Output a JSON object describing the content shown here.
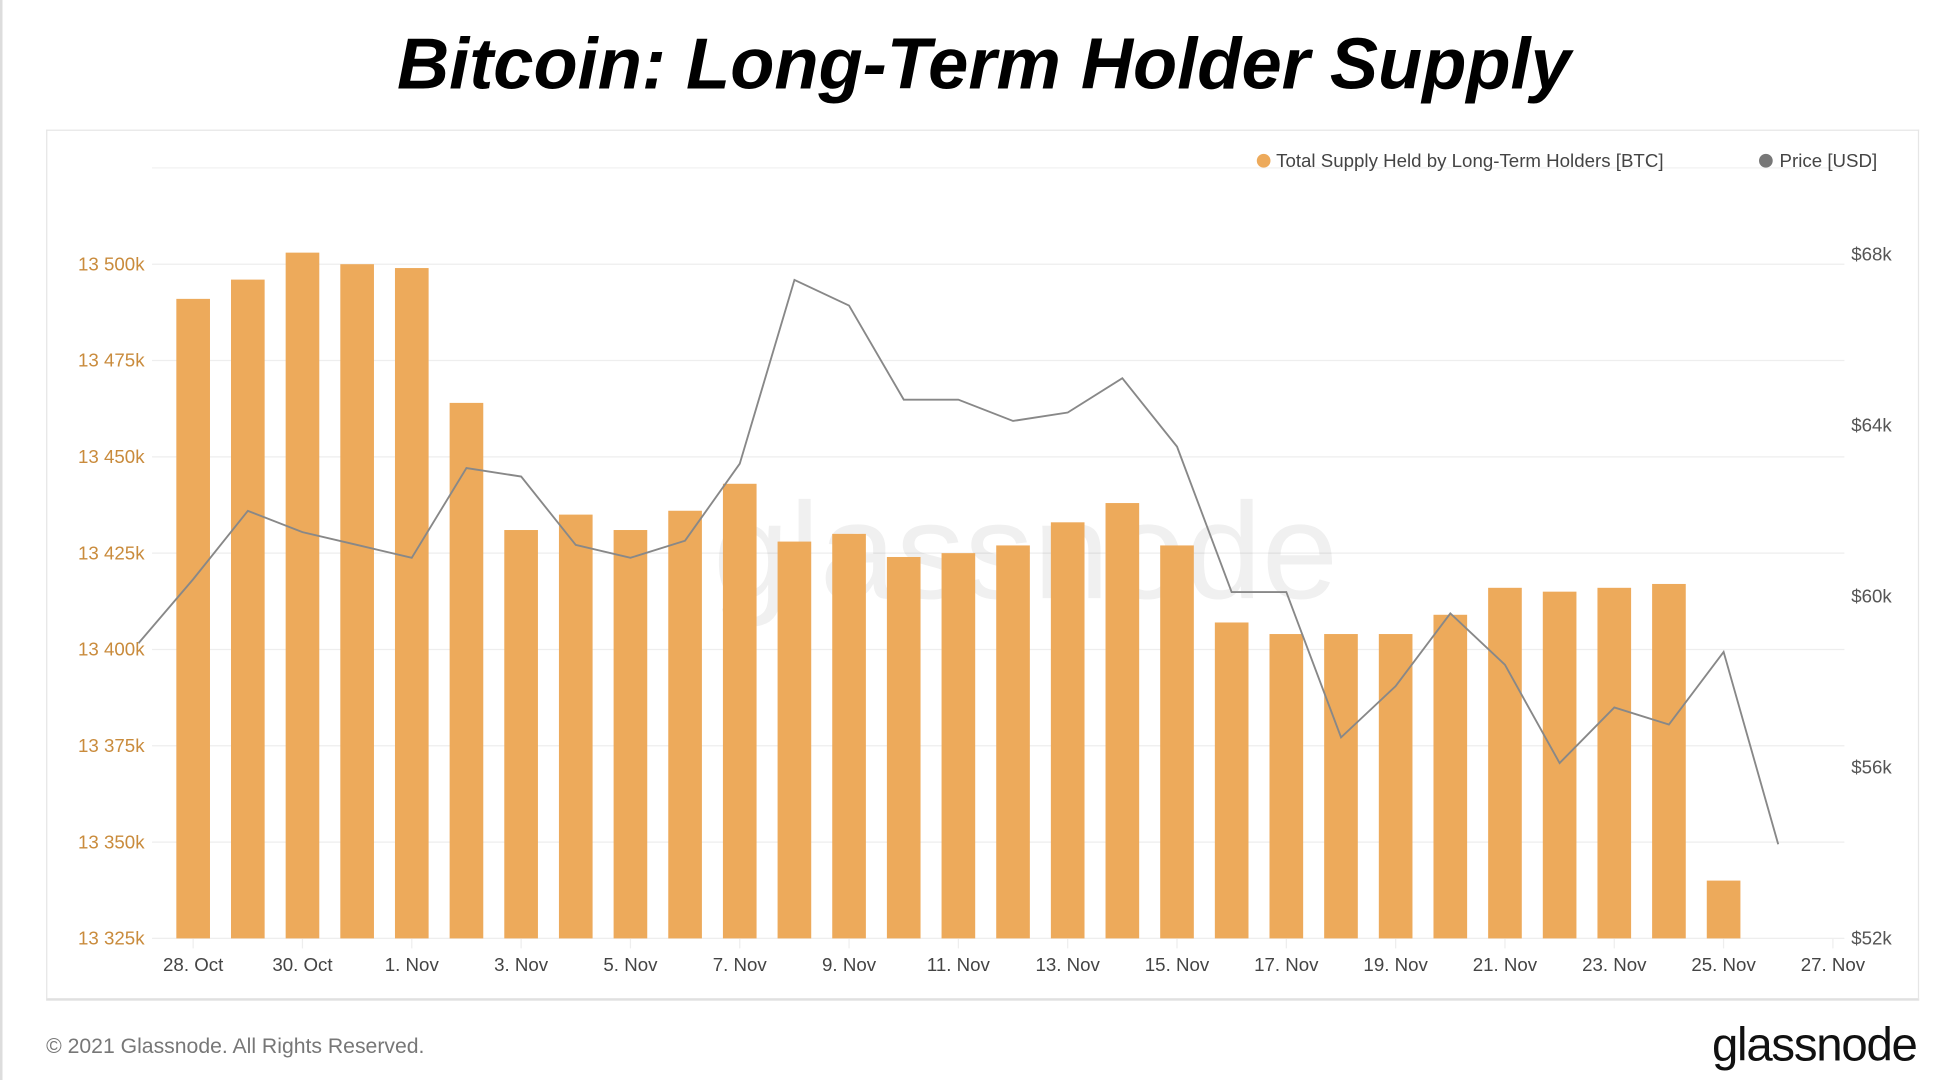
{
  "title": "Bitcoin: Long-Term Holder Supply",
  "footer": {
    "copyright": "© 2021 Glassnode. All Rights Reserved.",
    "logo": "glassnode"
  },
  "watermark": "glassnode",
  "colors": {
    "bars": "#EDAA5B",
    "price": "#777777",
    "left_axis": "#C98B3C",
    "right_axis": "#555555"
  },
  "chart_data": {
    "type": "bar+line",
    "legend_position": "top-right",
    "grid": true,
    "x_ticks": [
      "28. Oct",
      "30. Oct",
      "1. Nov",
      "3. Nov",
      "5. Nov",
      "7. Nov",
      "9. Nov",
      "11. Nov",
      "13. Nov",
      "15. Nov",
      "17. Nov",
      "19. Nov",
      "21. Nov",
      "23. Nov",
      "25. Nov",
      "27. Nov"
    ],
    "left_axis": {
      "ticks": [
        "13 325k",
        "13 350k",
        "13 375k",
        "13 400k",
        "13 425k",
        "13 450k",
        "13 475k",
        "13 500k"
      ],
      "range": [
        13325,
        13525
      ]
    },
    "right_axis": {
      "ticks": [
        "$52k",
        "$56k",
        "$60k",
        "$64k",
        "$68k"
      ],
      "range": [
        52,
        70
      ]
    },
    "series": [
      {
        "name": "Total Supply Held by Long-Term Holders [BTC]",
        "type": "bar",
        "unit": "thousand BTC",
        "x": [
          "2021-10-28",
          "2021-10-29",
          "2021-10-30",
          "2021-10-31",
          "2021-11-01",
          "2021-11-02",
          "2021-11-03",
          "2021-11-04",
          "2021-11-05",
          "2021-11-06",
          "2021-11-07",
          "2021-11-08",
          "2021-11-09",
          "2021-11-10",
          "2021-11-11",
          "2021-11-12",
          "2021-11-13",
          "2021-11-14",
          "2021-11-15",
          "2021-11-16",
          "2021-11-17",
          "2021-11-18",
          "2021-11-19",
          "2021-11-20",
          "2021-11-21",
          "2021-11-22",
          "2021-11-23",
          "2021-11-24",
          "2021-11-25"
        ],
        "values": [
          13491,
          13496,
          13503,
          13500,
          13499,
          13464,
          13431,
          13435,
          13431,
          13436,
          13443,
          13428,
          13430,
          13424,
          13425,
          13427,
          13433,
          13438,
          13427,
          13407,
          13404,
          13404,
          13404,
          13409,
          13416,
          13415,
          13416,
          13417,
          13340
        ]
      },
      {
        "name": "Price [USD]",
        "type": "line",
        "unit": "thousand USD",
        "x": [
          "2021-10-27",
          "2021-10-28",
          "2021-10-29",
          "2021-10-30",
          "2021-10-31",
          "2021-11-01",
          "2021-11-02",
          "2021-11-03",
          "2021-11-04",
          "2021-11-05",
          "2021-11-06",
          "2021-11-07",
          "2021-11-08",
          "2021-11-09",
          "2021-11-10",
          "2021-11-11",
          "2021-11-12",
          "2021-11-13",
          "2021-11-14",
          "2021-11-15",
          "2021-11-16",
          "2021-11-17",
          "2021-11-18",
          "2021-11-19",
          "2021-11-20",
          "2021-11-21",
          "2021-11-22",
          "2021-11-23",
          "2021-11-24",
          "2021-11-25",
          "2021-11-26"
        ],
        "values": [
          58.9,
          60.4,
          62.0,
          61.5,
          61.2,
          60.9,
          63.0,
          62.8,
          61.2,
          60.9,
          61.3,
          63.1,
          67.4,
          66.8,
          64.6,
          64.6,
          64.1,
          64.3,
          65.1,
          63.5,
          60.1,
          60.1,
          56.7,
          57.9,
          59.6,
          58.4,
          56.1,
          57.4,
          57.0,
          58.7,
          54.2
        ]
      }
    ]
  }
}
